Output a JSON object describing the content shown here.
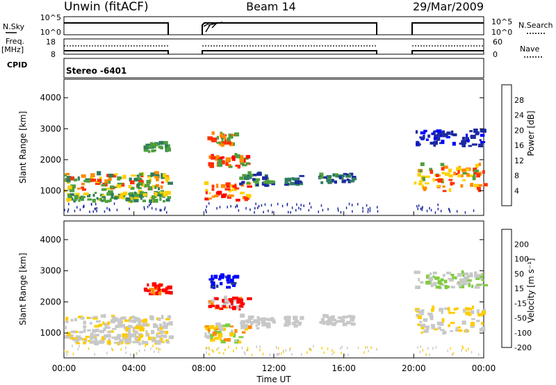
{
  "header": {
    "station": "Unwin (fitACF)",
    "beam": "Beam 14",
    "date": "29/Mar/2009"
  },
  "noise_panel": {
    "left_label": "N.Sky",
    "right_label": "N.Search",
    "left_ticks": [
      "10^5",
      "10^0"
    ],
    "right_ticks": [
      "10^5",
      "10^0"
    ]
  },
  "freq_panel": {
    "left_label_1": "Freq.",
    "left_label_2": "[MHz]",
    "right_label": "Nave",
    "left_ticks": [
      "18",
      "8"
    ],
    "right_ticks": [
      "60",
      "0"
    ]
  },
  "cpid": {
    "label": "CPID",
    "value": "Stereo -6401"
  },
  "colors": {
    "power_scale": [
      "#0000ff",
      "#1c2aa0",
      "#2f7d5f",
      "#4f9f3e",
      "#ffd000",
      "#ff8a00",
      "#ff3000",
      "#ff0000"
    ],
    "velocity_scale": [
      "#0000ff",
      "#1f3a9e",
      "#2f7d5f",
      "#7fcc3f",
      "#c8c8c8",
      "#ffcc00",
      "#ff8a00",
      "#ff0000"
    ]
  },
  "chart_data": [
    {
      "type": "heatmap",
      "title": "",
      "xlabel": "Time UT",
      "ylabel": "Slant Range [km]",
      "x_ticks": [
        "00:00",
        "04:00",
        "08:00",
        "12:00",
        "16:00",
        "20:00",
        "00:00"
      ],
      "y_ticks": [
        "1000",
        "2000",
        "3000",
        "4000"
      ],
      "ylim": [
        200,
        4600
      ],
      "xlim_hours": [
        0,
        24
      ],
      "colorbar": {
        "label": "Power [dB]",
        "ticks": [
          "4",
          "8",
          "12",
          "16",
          "20",
          "24",
          "28"
        ],
        "range": [
          0,
          32
        ]
      },
      "data_gaps_hours": [
        [
          6,
          8
        ],
        [
          18,
          20
        ]
      ]
    },
    {
      "type": "heatmap",
      "title": "",
      "xlabel": "Time UT",
      "ylabel": "Slant Range [km]",
      "x_ticks": [
        "00:00",
        "04:00",
        "08:00",
        "12:00",
        "16:00",
        "20:00",
        "00:00"
      ],
      "y_ticks": [
        "1000",
        "2000",
        "3000",
        "4000"
      ],
      "ylim": [
        200,
        4600
      ],
      "xlim_hours": [
        0,
        24
      ],
      "colorbar": {
        "label": "Velocity [m s⁻¹]",
        "ticks": [
          "200",
          "100",
          "50",
          "15",
          "-15",
          "-50",
          "-100",
          "-200"
        ],
        "range": [
          -200,
          200
        ]
      },
      "data_gaps_hours": [
        [
          6,
          8
        ],
        [
          18,
          20
        ]
      ]
    }
  ]
}
